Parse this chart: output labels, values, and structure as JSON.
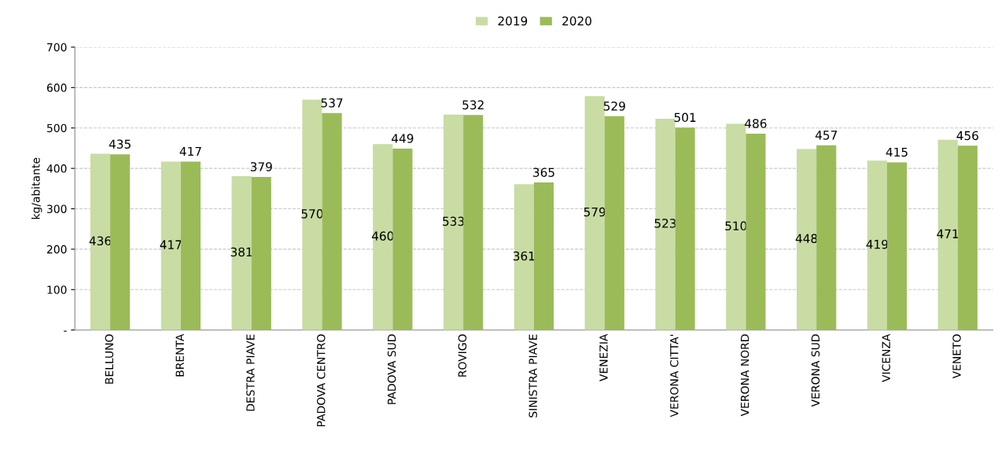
{
  "chart_data": {
    "type": "bar",
    "ylabel": "kg/abitante",
    "categories": [
      "BELLUNO",
      "BRENTA",
      "DESTRA PIAVE",
      "PADOVA CENTRO",
      "PADOVA SUD",
      "ROVIGO",
      "SINISTRA PIAVE",
      "VENEZIA",
      "VERONA CITTA'",
      "VERONA NORD",
      "VERONA SUD",
      "VICENZA",
      "VENETO"
    ],
    "series": [
      {
        "name": "2019",
        "color": "#c8dca4",
        "values": [
          436,
          417,
          381,
          570,
          460,
          533,
          361,
          579,
          523,
          510,
          448,
          419,
          471
        ]
      },
      {
        "name": "2020",
        "color": "#9bbb59",
        "values": [
          435,
          417,
          379,
          537,
          449,
          532,
          365,
          529,
          501,
          486,
          457,
          415,
          456
        ]
      }
    ],
    "ylim": [
      0,
      700
    ],
    "yticks": [
      {
        "value": 0,
        "label": "-"
      },
      100,
      200,
      300,
      400,
      500,
      600,
      700
    ],
    "grid": "y",
    "legend": "top",
    "data_labels": true
  }
}
